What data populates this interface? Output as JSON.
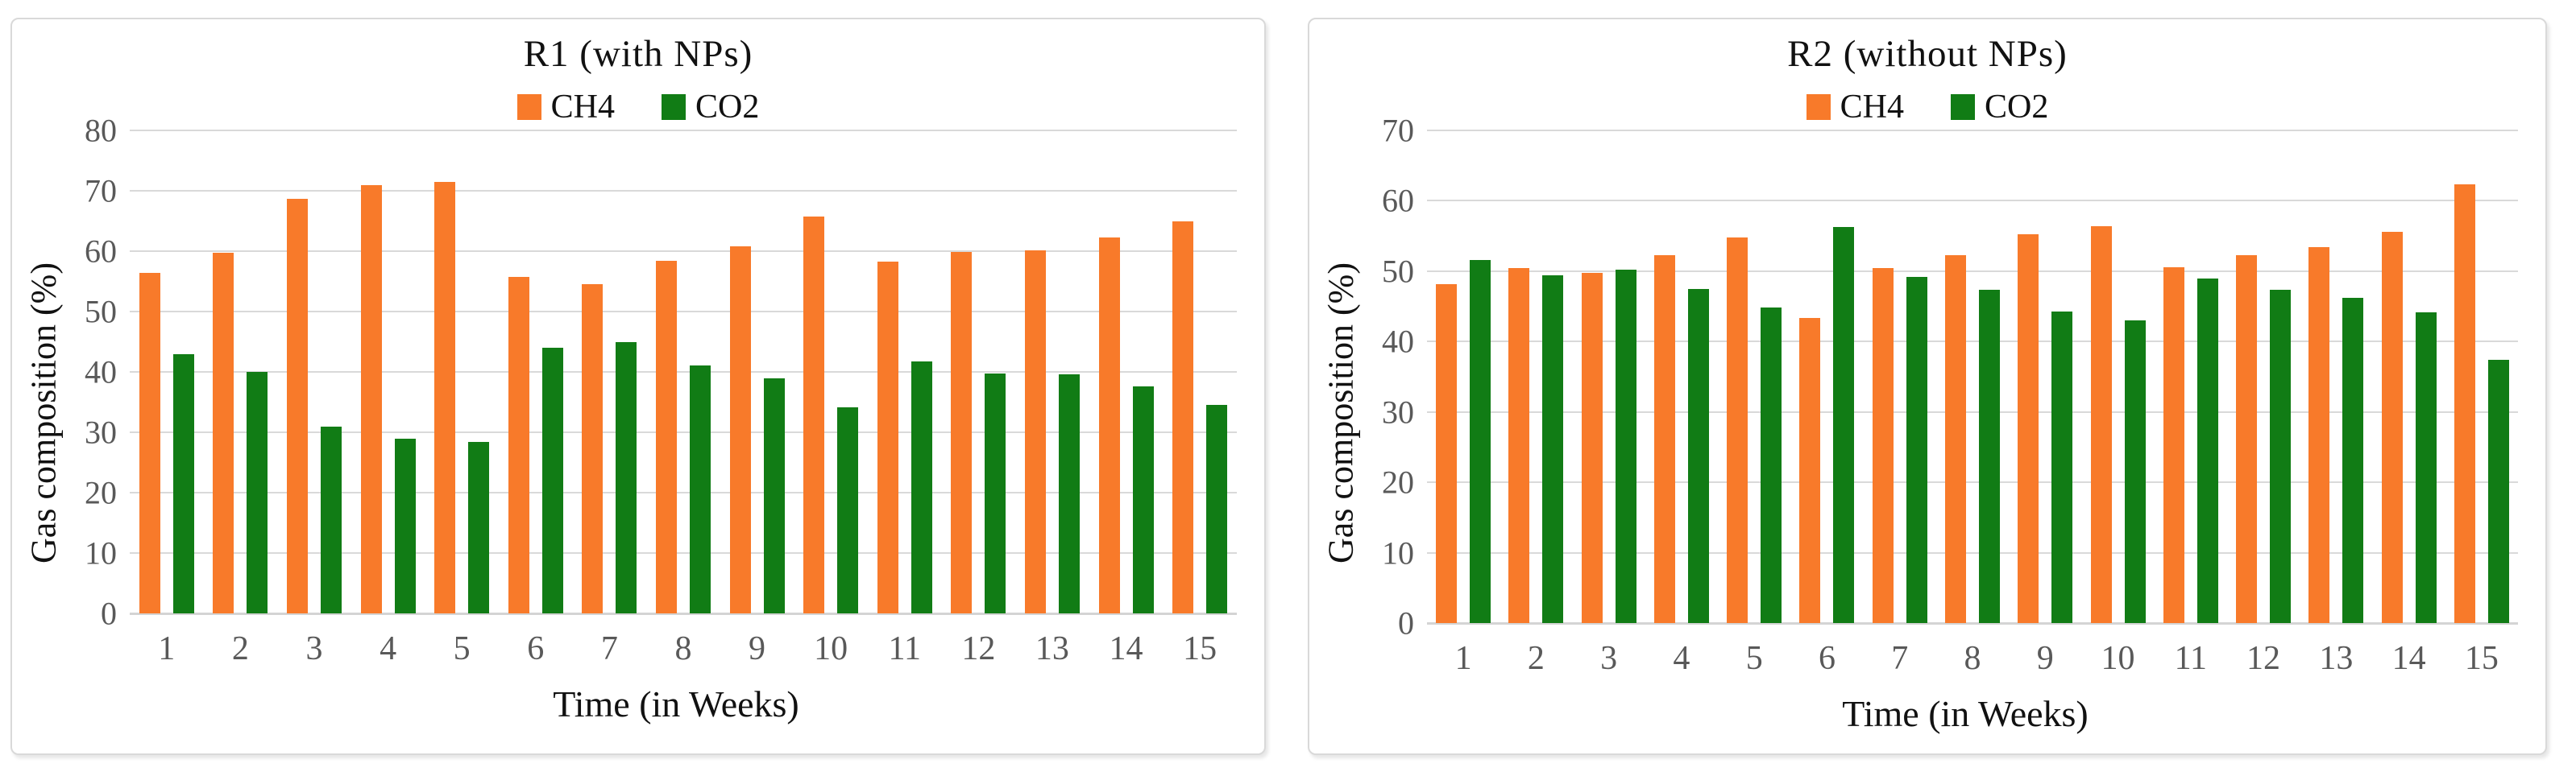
{
  "figure": {
    "background": "#ffffff",
    "panel_border_color": "#d9d9d9",
    "gridline_color": "#d9d9d9",
    "tick_text_color": "#595959",
    "text_color": "#111111"
  },
  "chart_data": [
    {
      "type": "bar",
      "title": "R1 (with NPs)",
      "xlabel": "Time (in Weeks)",
      "ylabel": "Gas composition (%)",
      "ylim": [
        0,
        80
      ],
      "ytick_step": 10,
      "grid": true,
      "legend_position": "top",
      "categories": [
        "1",
        "2",
        "3",
        "4",
        "5",
        "6",
        "7",
        "8",
        "9",
        "10",
        "11",
        "12",
        "13",
        "14",
        "15"
      ],
      "series": [
        {
          "name": "CH4",
          "color": "#f87a2a",
          "values": [
            56.4,
            59.8,
            68.7,
            70.9,
            71.5,
            55.7,
            54.6,
            58.4,
            60.8,
            65.8,
            58.3,
            59.9,
            60.1,
            62.3,
            64.9
          ]
        },
        {
          "name": "CO2",
          "color": "#117c15",
          "values": [
            43.0,
            40.0,
            31.0,
            29.0,
            28.4,
            44.0,
            44.9,
            41.1,
            38.9,
            34.2,
            41.8,
            39.8,
            39.6,
            37.6,
            34.6
          ]
        }
      ]
    },
    {
      "type": "bar",
      "title": "R2 (without NPs)",
      "xlabel": "Time (in Weeks)",
      "ylabel": "Gas composition (%)",
      "ylim": [
        0,
        70
      ],
      "ytick_step": 10,
      "grid": true,
      "legend_position": "top",
      "categories": [
        "1",
        "2",
        "3",
        "4",
        "5",
        "6",
        "7",
        "8",
        "9",
        "10",
        "11",
        "12",
        "13",
        "14",
        "15"
      ],
      "series": [
        {
          "name": "CH4",
          "color": "#f87a2a",
          "values": [
            48.1,
            50.4,
            49.7,
            52.3,
            54.8,
            43.3,
            50.5,
            52.3,
            55.3,
            56.4,
            50.6,
            52.3,
            53.4,
            55.6,
            62.3
          ]
        },
        {
          "name": "CO2",
          "color": "#117c15",
          "values": [
            51.6,
            49.4,
            50.2,
            47.5,
            44.8,
            56.3,
            49.2,
            47.3,
            44.3,
            43.0,
            48.9,
            47.3,
            46.2,
            44.1,
            37.4
          ]
        }
      ]
    }
  ]
}
